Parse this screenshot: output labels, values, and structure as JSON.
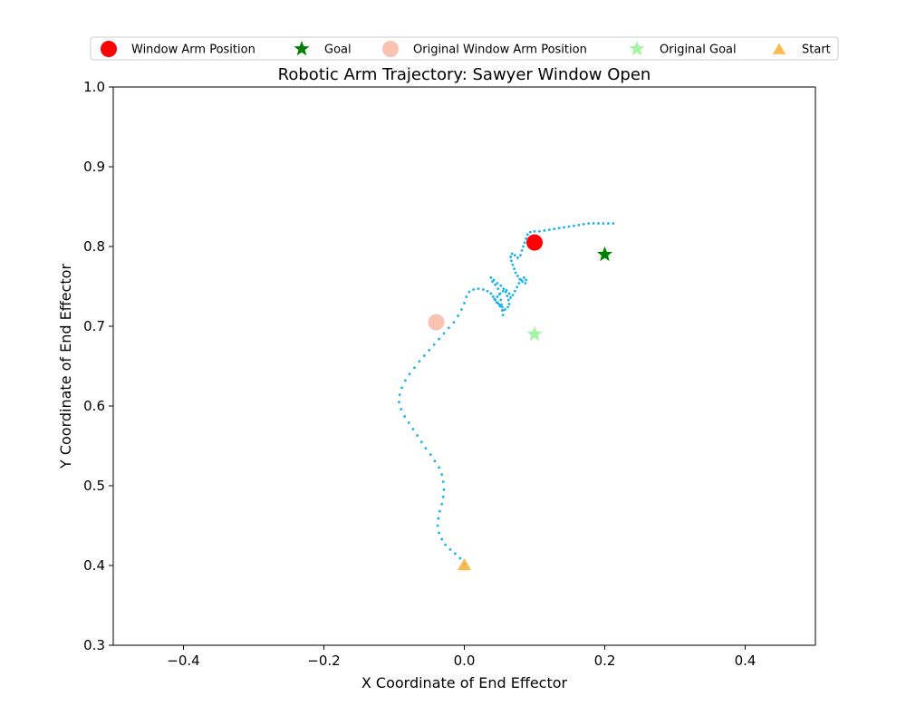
{
  "chart_data": {
    "type": "scatter",
    "title": "Robotic Arm Trajectory: Sawyer Window Open",
    "xlabel": "X Coordinate of End Effector",
    "ylabel": "Y Coordinate of End Effector",
    "xlim": [
      -0.5,
      0.5
    ],
    "ylim": [
      0.3,
      1.0
    ],
    "xticks": [
      -0.4,
      -0.2,
      0.0,
      0.2,
      0.4
    ],
    "yticks": [
      0.3,
      0.4,
      0.5,
      0.6,
      0.7,
      0.8,
      0.9,
      1.0
    ],
    "xtick_labels": [
      "−0.4",
      "−0.2",
      "0.0",
      "0.2",
      "0.4"
    ],
    "ytick_labels": [
      "0.3",
      "0.4",
      "0.5",
      "0.6",
      "0.7",
      "0.8",
      "0.9",
      "1.0"
    ],
    "grid": false,
    "legend_position": "top",
    "trajectory": {
      "color": "#1ab3ee",
      "points": [
        [
          0.0,
          0.402
        ],
        [
          -0.006,
          0.409
        ],
        [
          -0.013,
          0.415
        ],
        [
          -0.02,
          0.42
        ],
        [
          -0.027,
          0.426
        ],
        [
          -0.032,
          0.433
        ],
        [
          -0.036,
          0.441
        ],
        [
          -0.038,
          0.45
        ],
        [
          -0.037,
          0.459
        ],
        [
          -0.035,
          0.468
        ],
        [
          -0.032,
          0.477
        ],
        [
          -0.03,
          0.486
        ],
        [
          -0.029,
          0.495
        ],
        [
          -0.03,
          0.505
        ],
        [
          -0.032,
          0.514
        ],
        [
          -0.036,
          0.523
        ],
        [
          -0.042,
          0.531
        ],
        [
          -0.048,
          0.539
        ],
        [
          -0.055,
          0.547
        ],
        [
          -0.061,
          0.555
        ],
        [
          -0.067,
          0.563
        ],
        [
          -0.073,
          0.571
        ],
        [
          -0.079,
          0.579
        ],
        [
          -0.085,
          0.587
        ],
        [
          -0.09,
          0.596
        ],
        [
          -0.093,
          0.605
        ],
        [
          -0.092,
          0.614
        ],
        [
          -0.089,
          0.623
        ],
        [
          -0.084,
          0.632
        ],
        [
          -0.078,
          0.64
        ],
        [
          -0.071,
          0.648
        ],
        [
          -0.064,
          0.656
        ],
        [
          -0.057,
          0.663
        ],
        [
          -0.05,
          0.67
        ],
        [
          -0.043,
          0.677
        ],
        [
          -0.036,
          0.684
        ],
        [
          -0.029,
          0.691
        ],
        [
          -0.022,
          0.698
        ],
        [
          -0.015,
          0.705
        ],
        [
          -0.009,
          0.713
        ],
        [
          -0.004,
          0.721
        ],
        [
          0.0,
          0.729
        ],
        [
          0.003,
          0.737
        ],
        [
          0.007,
          0.743
        ],
        [
          0.013,
          0.746
        ],
        [
          0.02,
          0.747
        ],
        [
          0.027,
          0.746
        ],
        [
          0.033,
          0.744
        ],
        [
          0.038,
          0.741
        ],
        [
          0.041,
          0.737
        ],
        [
          0.044,
          0.733
        ],
        [
          0.048,
          0.729
        ],
        [
          0.051,
          0.725
        ],
        [
          0.054,
          0.72
        ],
        [
          0.055,
          0.714
        ],
        [
          0.055,
          0.72
        ],
        [
          0.053,
          0.727
        ],
        [
          0.052,
          0.733
        ],
        [
          0.05,
          0.74
        ],
        [
          0.048,
          0.747
        ],
        [
          0.044,
          0.752
        ],
        [
          0.04,
          0.756
        ],
        [
          0.038,
          0.761
        ],
        [
          0.042,
          0.758
        ],
        [
          0.047,
          0.754
        ],
        [
          0.052,
          0.751
        ],
        [
          0.056,
          0.747
        ],
        [
          0.059,
          0.743
        ],
        [
          0.061,
          0.738
        ],
        [
          0.063,
          0.733
        ],
        [
          0.064,
          0.728
        ],
        [
          0.062,
          0.724
        ],
        [
          0.058,
          0.721
        ],
        [
          0.054,
          0.724
        ],
        [
          0.05,
          0.727
        ],
        [
          0.046,
          0.73
        ],
        [
          0.043,
          0.734
        ],
        [
          0.047,
          0.737
        ],
        [
          0.051,
          0.741
        ],
        [
          0.055,
          0.744
        ],
        [
          0.06,
          0.745
        ],
        [
          0.064,
          0.741
        ],
        [
          0.066,
          0.736
        ],
        [
          0.069,
          0.739
        ],
        [
          0.072,
          0.744
        ],
        [
          0.075,
          0.749
        ],
        [
          0.078,
          0.754
        ],
        [
          0.081,
          0.758
        ],
        [
          0.085,
          0.761
        ],
        [
          0.088,
          0.758
        ],
        [
          0.087,
          0.754
        ],
        [
          0.083,
          0.756
        ],
        [
          0.079,
          0.759
        ],
        [
          0.076,
          0.763
        ],
        [
          0.073,
          0.767
        ],
        [
          0.071,
          0.772
        ],
        [
          0.069,
          0.777
        ],
        [
          0.067,
          0.782
        ],
        [
          0.066,
          0.787
        ],
        [
          0.068,
          0.791
        ],
        [
          0.072,
          0.789
        ],
        [
          0.076,
          0.786
        ],
        [
          0.08,
          0.789
        ],
        [
          0.082,
          0.795
        ],
        [
          0.084,
          0.8
        ],
        [
          0.086,
          0.805
        ],
        [
          0.088,
          0.81
        ],
        [
          0.09,
          0.815
        ],
        [
          0.094,
          0.818
        ],
        [
          0.1,
          0.819
        ],
        [
          0.107,
          0.819
        ],
        [
          0.114,
          0.82
        ],
        [
          0.121,
          0.821
        ],
        [
          0.128,
          0.822
        ],
        [
          0.135,
          0.823
        ],
        [
          0.142,
          0.824
        ],
        [
          0.149,
          0.825
        ],
        [
          0.156,
          0.826
        ],
        [
          0.163,
          0.827
        ],
        [
          0.17,
          0.828
        ],
        [
          0.177,
          0.829
        ],
        [
          0.184,
          0.829
        ],
        [
          0.191,
          0.829
        ],
        [
          0.198,
          0.829
        ],
        [
          0.205,
          0.829
        ],
        [
          0.212,
          0.829
        ]
      ]
    },
    "markers": [
      {
        "name": "Window Arm Position",
        "shape": "circle",
        "x": 0.1,
        "y": 0.805,
        "color": "#ff0000"
      },
      {
        "name": "Goal",
        "shape": "star",
        "x": 0.2,
        "y": 0.79,
        "color": "#008000"
      },
      {
        "name": "Original Window Arm Position",
        "shape": "circle",
        "x": -0.04,
        "y": 0.705,
        "color": "#f9b9a3"
      },
      {
        "name": "Original Goal",
        "shape": "star",
        "x": 0.1,
        "y": 0.69,
        "color": "#98f598"
      },
      {
        "name": "Start",
        "shape": "triangle",
        "x": 0.0,
        "y": 0.4,
        "color": "#f9b43c"
      }
    ],
    "legend": [
      {
        "label": "Window Arm Position",
        "shape": "circle",
        "color": "#ff0000"
      },
      {
        "label": "Goal",
        "shape": "star",
        "color": "#008000"
      },
      {
        "label": "Original Window Arm Position",
        "shape": "circle",
        "color": "#f9b9a3"
      },
      {
        "label": "Original Goal",
        "shape": "star",
        "color": "#98f598"
      },
      {
        "label": "Start",
        "shape": "triangle",
        "color": "#f9b43c"
      }
    ]
  }
}
